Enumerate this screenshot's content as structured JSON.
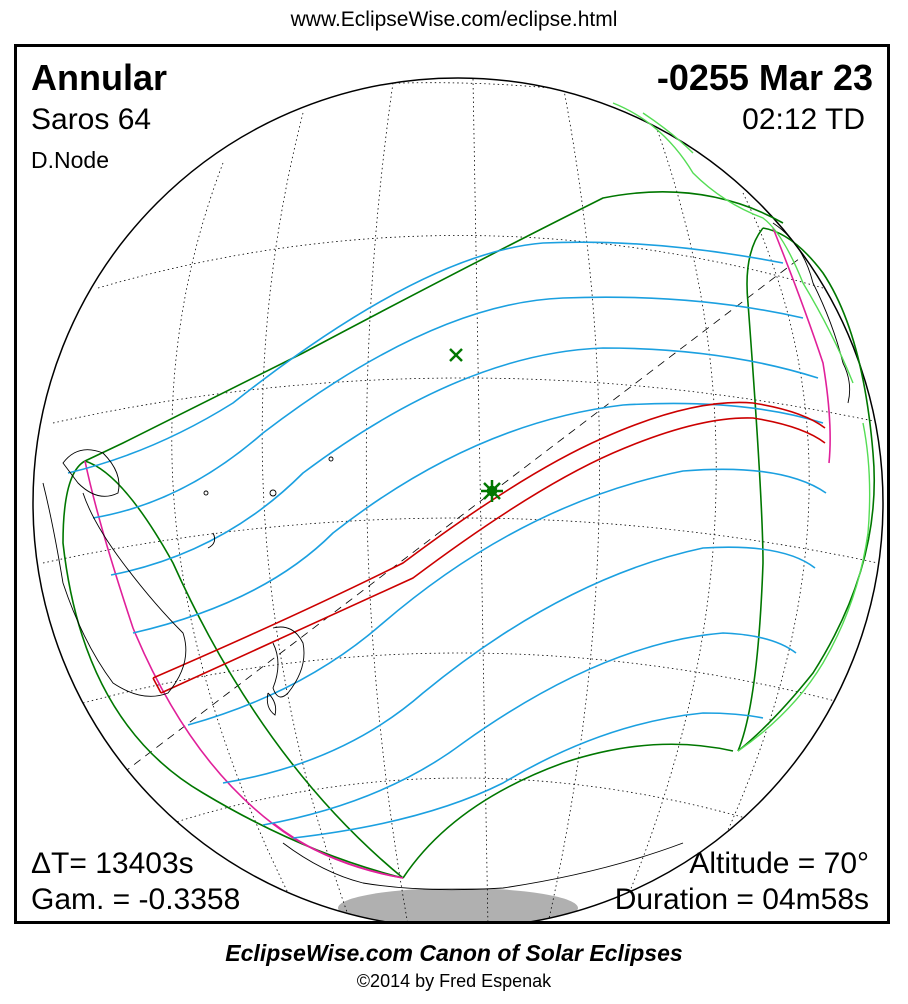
{
  "header": {
    "url": "www.EclipseWise.com/eclipse.html"
  },
  "eclipse": {
    "type": "Annular",
    "date": "-0255 Mar 23",
    "saros": "Saros  64",
    "time": "02:12 TD",
    "node": "D.Node",
    "delta_t": "ΔT=  13403s",
    "gamma": "Gam. = -0.3358",
    "altitude": "Altitude = 70°",
    "duration": "Duration = 04m58s"
  },
  "map": {
    "projection": "orthographic",
    "colors": {
      "penumbral_limits": "#007700",
      "central_path": "#cc0000",
      "obscuration_lines": "#1ba0e0",
      "rise_set_curves": "#e0209a",
      "coastline": "#000000",
      "greenland_coast": "#55dd55",
      "night_shadow": "#b0b0b0"
    },
    "markers": [
      {
        "name": "greatest-eclipse",
        "symbol": "star"
      },
      {
        "name": "sub-solar-point",
        "symbol": "x"
      }
    ]
  },
  "footer": {
    "title": "EclipseWise.com Canon of Solar Eclipses",
    "copyright": "©2014 by Fred Espenak"
  }
}
